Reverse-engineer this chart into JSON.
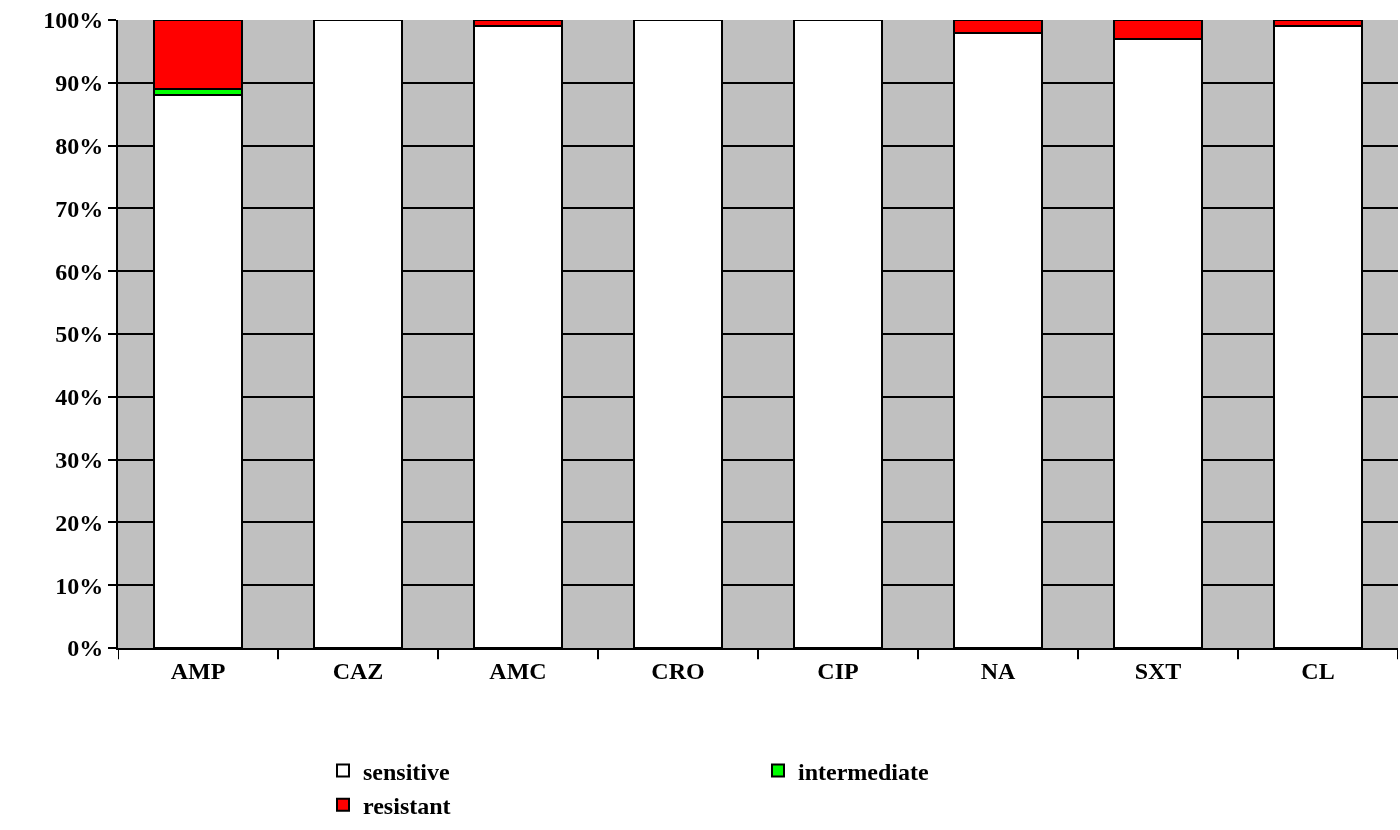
{
  "chart_data": {
    "type": "bar",
    "stacked": true,
    "categories": [
      "AMP",
      "CAZ",
      "AMC",
      "CRO",
      "CIP",
      "NA",
      "SXT",
      "CL"
    ],
    "series": [
      {
        "name": "sensitive",
        "color": "#ffffff",
        "values": [
          88,
          100,
          99,
          100,
          100,
          98,
          97,
          99
        ]
      },
      {
        "name": "intermediate",
        "color": "#00ff00",
        "values": [
          1,
          0,
          0,
          0,
          0,
          0,
          0,
          0
        ]
      },
      {
        "name": "resistant",
        "color": "#ff0000",
        "values": [
          11,
          0,
          1,
          0,
          0,
          2,
          3,
          1
        ]
      }
    ],
    "ylim": [
      0,
      100
    ],
    "yticks": [
      {
        "value": 0,
        "label": "0%"
      },
      {
        "value": 10,
        "label": "10%"
      },
      {
        "value": 20,
        "label": "20%"
      },
      {
        "value": 30,
        "label": "30%"
      },
      {
        "value": 40,
        "label": "40%"
      },
      {
        "value": 50,
        "label": "50%"
      },
      {
        "value": 60,
        "label": "60%"
      },
      {
        "value": 70,
        "label": "70%"
      },
      {
        "value": 80,
        "label": "80%"
      },
      {
        "value": 90,
        "label": "90%"
      },
      {
        "value": 100,
        "label": "100%"
      }
    ],
    "grid": "y",
    "legend": "bottom"
  }
}
